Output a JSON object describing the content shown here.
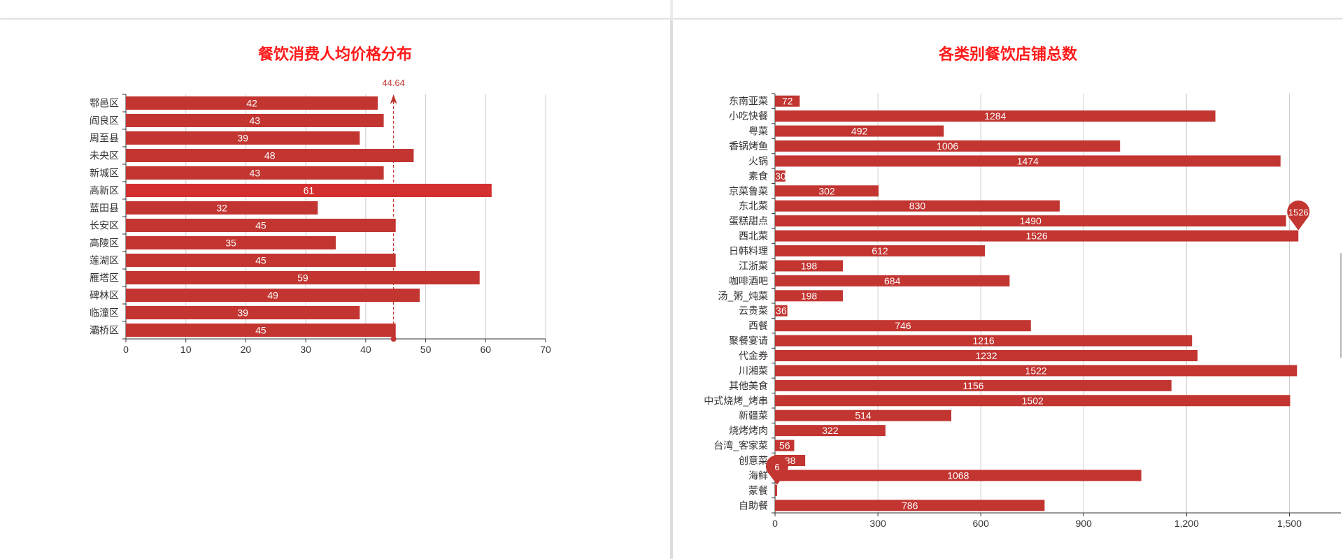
{
  "colors": {
    "bar": "#c23531",
    "bar_highlight": "#d32f2f",
    "title": "#ff1a1a",
    "axis": "#333333",
    "grid": "#cccccc",
    "label": "#ffffff",
    "markline": "#c23531"
  },
  "chart_data": [
    {
      "type": "bar",
      "orientation": "horizontal",
      "title": "餐饮消费人均价格分布",
      "categories": [
        "鄠邑区",
        "阎良区",
        "周至县",
        "未央区",
        "新城区",
        "高新区",
        "蓝田县",
        "长安区",
        "高陵区",
        "莲湖区",
        "雁塔区",
        "碑林区",
        "临潼区",
        "灞桥区"
      ],
      "values": [
        42,
        43,
        39,
        48,
        43,
        61,
        32,
        45,
        35,
        45,
        59,
        49,
        39,
        45
      ],
      "xlim": [
        0,
        70
      ],
      "xticks": [
        "0",
        "10",
        "20",
        "30",
        "40",
        "50",
        "60",
        "70"
      ],
      "grid": true,
      "mark_line": {
        "label": "44.64",
        "value": 44.64
      },
      "highlight_index": 5
    },
    {
      "type": "bar",
      "orientation": "horizontal",
      "title": "各类别餐饮店铺总数",
      "categories": [
        "东南亚菜",
        "小吃快餐",
        "粤菜",
        "香锅烤鱼",
        "火锅",
        "素食",
        "京菜鲁菜",
        "东北菜",
        "蛋糕甜点",
        "西北菜",
        "日韩料理",
        "江浙菜",
        "咖啡酒吧",
        "汤_粥_炖菜",
        "云贵菜",
        "西餐",
        "聚餐宴请",
        "代金券",
        "川湘菜",
        "其他美食",
        "中式烧烤_烤串",
        "新疆菜",
        "烧烤烤肉",
        "台湾_客家菜",
        "创意菜",
        "海鲜",
        "蒙餐",
        "自助餐"
      ],
      "values": [
        72,
        1284,
        492,
        1006,
        1474,
        30,
        302,
        830,
        1490,
        1526,
        612,
        198,
        684,
        198,
        36,
        746,
        1216,
        1232,
        1522,
        1156,
        1502,
        514,
        322,
        56,
        88,
        1068,
        6,
        786
      ],
      "value_labels": [
        "72",
        "1284",
        "492",
        "1006",
        "1474",
        "30",
        "302",
        "830",
        "1490",
        "1526",
        "612",
        "198",
        "684",
        "198",
        "36",
        "746",
        "1216",
        "1232",
        "1522",
        "1156",
        "1502",
        "514",
        "322",
        "56",
        "88",
        "1068",
        "6",
        "786"
      ],
      "xlim": [
        0,
        1650
      ],
      "xticks": [
        "0",
        "300",
        "600",
        "900",
        "1,200",
        "1,500"
      ],
      "xtick_values": [
        0,
        300,
        600,
        900,
        1200,
        1500
      ],
      "grid": true,
      "mark_points": [
        {
          "label": "1526",
          "index": 9,
          "value": 1526
        },
        {
          "label": "6",
          "index": 26,
          "value": 6
        }
      ]
    }
  ]
}
